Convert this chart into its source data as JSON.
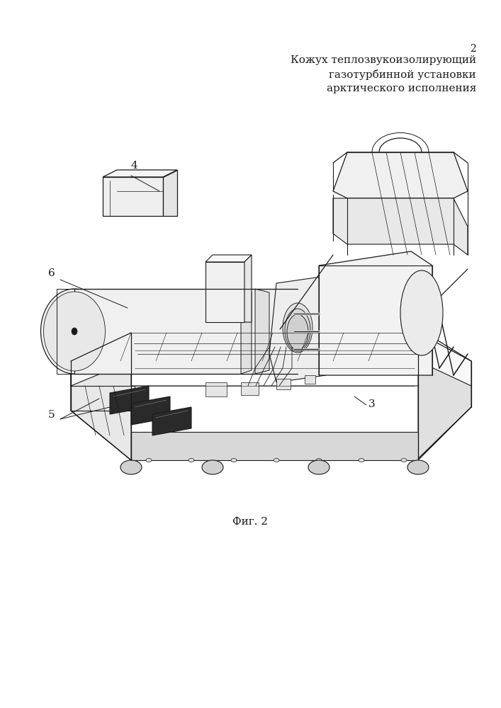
{
  "page_number": "2",
  "title_line1": "Кожух теплозвукоизолирующий",
  "title_line2": "газотурбинной установки",
  "title_line3": "арктического исполнения",
  "caption": "Фиг. 2",
  "label_3": "3",
  "label_4": "4",
  "label_5": "5",
  "label_6": "6",
  "background": "#ffffff",
  "line_color": "#1a1a1a",
  "text_color": "#1a1a1a",
  "title_fontsize": 11,
  "caption_fontsize": 11,
  "label_fontsize": 11,
  "page_number_fontsize": 10
}
